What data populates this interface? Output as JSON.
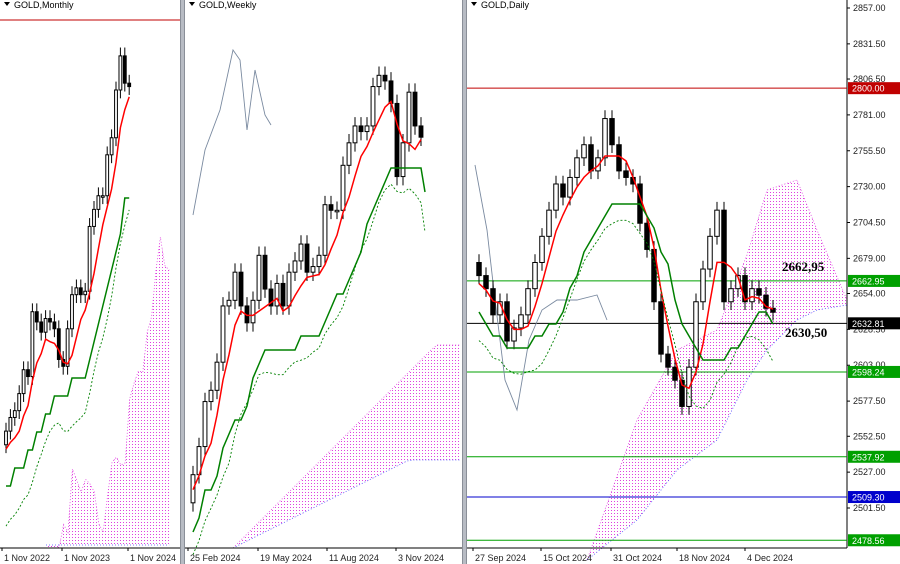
{
  "colors": {
    "candle": "#000000",
    "tenkan": "#ff0000",
    "kijun": "#008000",
    "dotted": "#008000",
    "cloud": "#e040e0",
    "resistance": "#c00000",
    "support": "#00a000",
    "blue_level": "#0000cc",
    "grey_line": "#7a8aa0"
  },
  "panels": {
    "monthly": {
      "title": "GOLD,Monthly",
      "x_labels": [
        "1 Nov 2022",
        "1 Nov 2023",
        "1 Nov 2024"
      ]
    },
    "weekly": {
      "title": "GOLD,Weekly",
      "x_labels": [
        "25 Feb 2024",
        "19 May 2024",
        "11 Aug 2024",
        "3 Nov 2024"
      ]
    },
    "daily": {
      "title": "GOLD,Daily",
      "x_labels": [
        "27 Sep 2024",
        "15 Oct 2024",
        "31 Oct 2024",
        "18 Nov 2024",
        "4 Dec 2024"
      ],
      "y_ticks": [
        "2857.00",
        "2831.50",
        "2806.50",
        "2781.00",
        "2755.50",
        "2730.00",
        "2704.50",
        "2679.00",
        "2654.00",
        "2628.50",
        "2603.00",
        "2577.50",
        "2552.50",
        "2527.00",
        "2501.50"
      ],
      "price_tags": [
        "2800.00",
        "2662.95",
        "2632.81",
        "2598.24",
        "2537.92",
        "2509.30",
        "2478.56"
      ],
      "annotations": [
        "2662,95",
        "2630,50"
      ]
    }
  },
  "chart_data": [
    {
      "type": "candlestick",
      "title": "GOLD,Monthly",
      "x_tick_labels": [
        "1 Nov 2022",
        "1 Nov 2023",
        "1 Nov 2024"
      ],
      "approx_close_sequence": [
        1640,
        1680,
        1700,
        1750,
        1820,
        1800,
        1990,
        1960,
        1930,
        1970,
        1960,
        1940,
        1850,
        1830,
        1940,
        2040,
        2060,
        2040,
        2050,
        2240,
        2290,
        2330,
        2330,
        2450,
        2500,
        2640,
        2740,
        2660,
        2650
      ],
      "note_lines": [
        "tenkan",
        "kijun",
        "ichimoku_cloud"
      ]
    },
    {
      "type": "candlestick",
      "title": "GOLD,Weekly",
      "x_tick_labels": [
        "25 Feb 2024",
        "19 May 2024",
        "11 Aug 2024",
        "3 Nov 2024"
      ],
      "approx_close_sequence": [
        2030,
        2080,
        2160,
        2180,
        2230,
        2330,
        2340,
        2390,
        2330,
        2300,
        2340,
        2420,
        2360,
        2330,
        2370,
        2330,
        2390,
        2410,
        2440,
        2390,
        2400,
        2420,
        2510,
        2500,
        2500,
        2580,
        2620,
        2650,
        2640,
        2650,
        2720,
        2740,
        2730,
        2690,
        2560,
        2620,
        2710,
        2650,
        2630
      ]
    },
    {
      "type": "candlestick",
      "title": "GOLD,Daily",
      "x_tick_labels": [
        "27 Sep 2024",
        "15 Oct 2024",
        "31 Oct 2024",
        "18 Nov 2024",
        "4 Dec 2024"
      ],
      "y_ticks": [
        2857.0,
        2831.5,
        2806.5,
        2781.0,
        2755.5,
        2730.0,
        2704.5,
        2679.0,
        2654.0,
        2628.5,
        2603.0,
        2577.5,
        2552.5,
        2527.0,
        2501.5
      ],
      "ylim": [
        2478.56,
        2870.0
      ],
      "levels": [
        {
          "value": 2800.0,
          "color": "#c00000"
        },
        {
          "value": 2662.95,
          "color": "#00a000"
        },
        {
          "value": 2632.81,
          "color": "#000000"
        },
        {
          "value": 2598.24,
          "color": "#00a000"
        },
        {
          "value": 2537.92,
          "color": "#00a000"
        },
        {
          "value": 2509.3,
          "color": "#0000cc"
        },
        {
          "value": 2478.56,
          "color": "#00a000"
        }
      ],
      "approx_close_sequence": [
        2660,
        2650,
        2630,
        2640,
        2610,
        2620,
        2630,
        2650,
        2670,
        2690,
        2710,
        2730,
        2720,
        2735,
        2750,
        2760,
        2740,
        2750,
        2780,
        2760,
        2740,
        2735,
        2730,
        2700,
        2680,
        2640,
        2600,
        2590,
        2580,
        2560,
        2590,
        2640,
        2665,
        2690,
        2710,
        2640,
        2650,
        2660,
        2640,
        2650,
        2645,
        2635,
        2632
      ],
      "annotations": [
        "2662,95",
        "2630,50"
      ]
    }
  ]
}
